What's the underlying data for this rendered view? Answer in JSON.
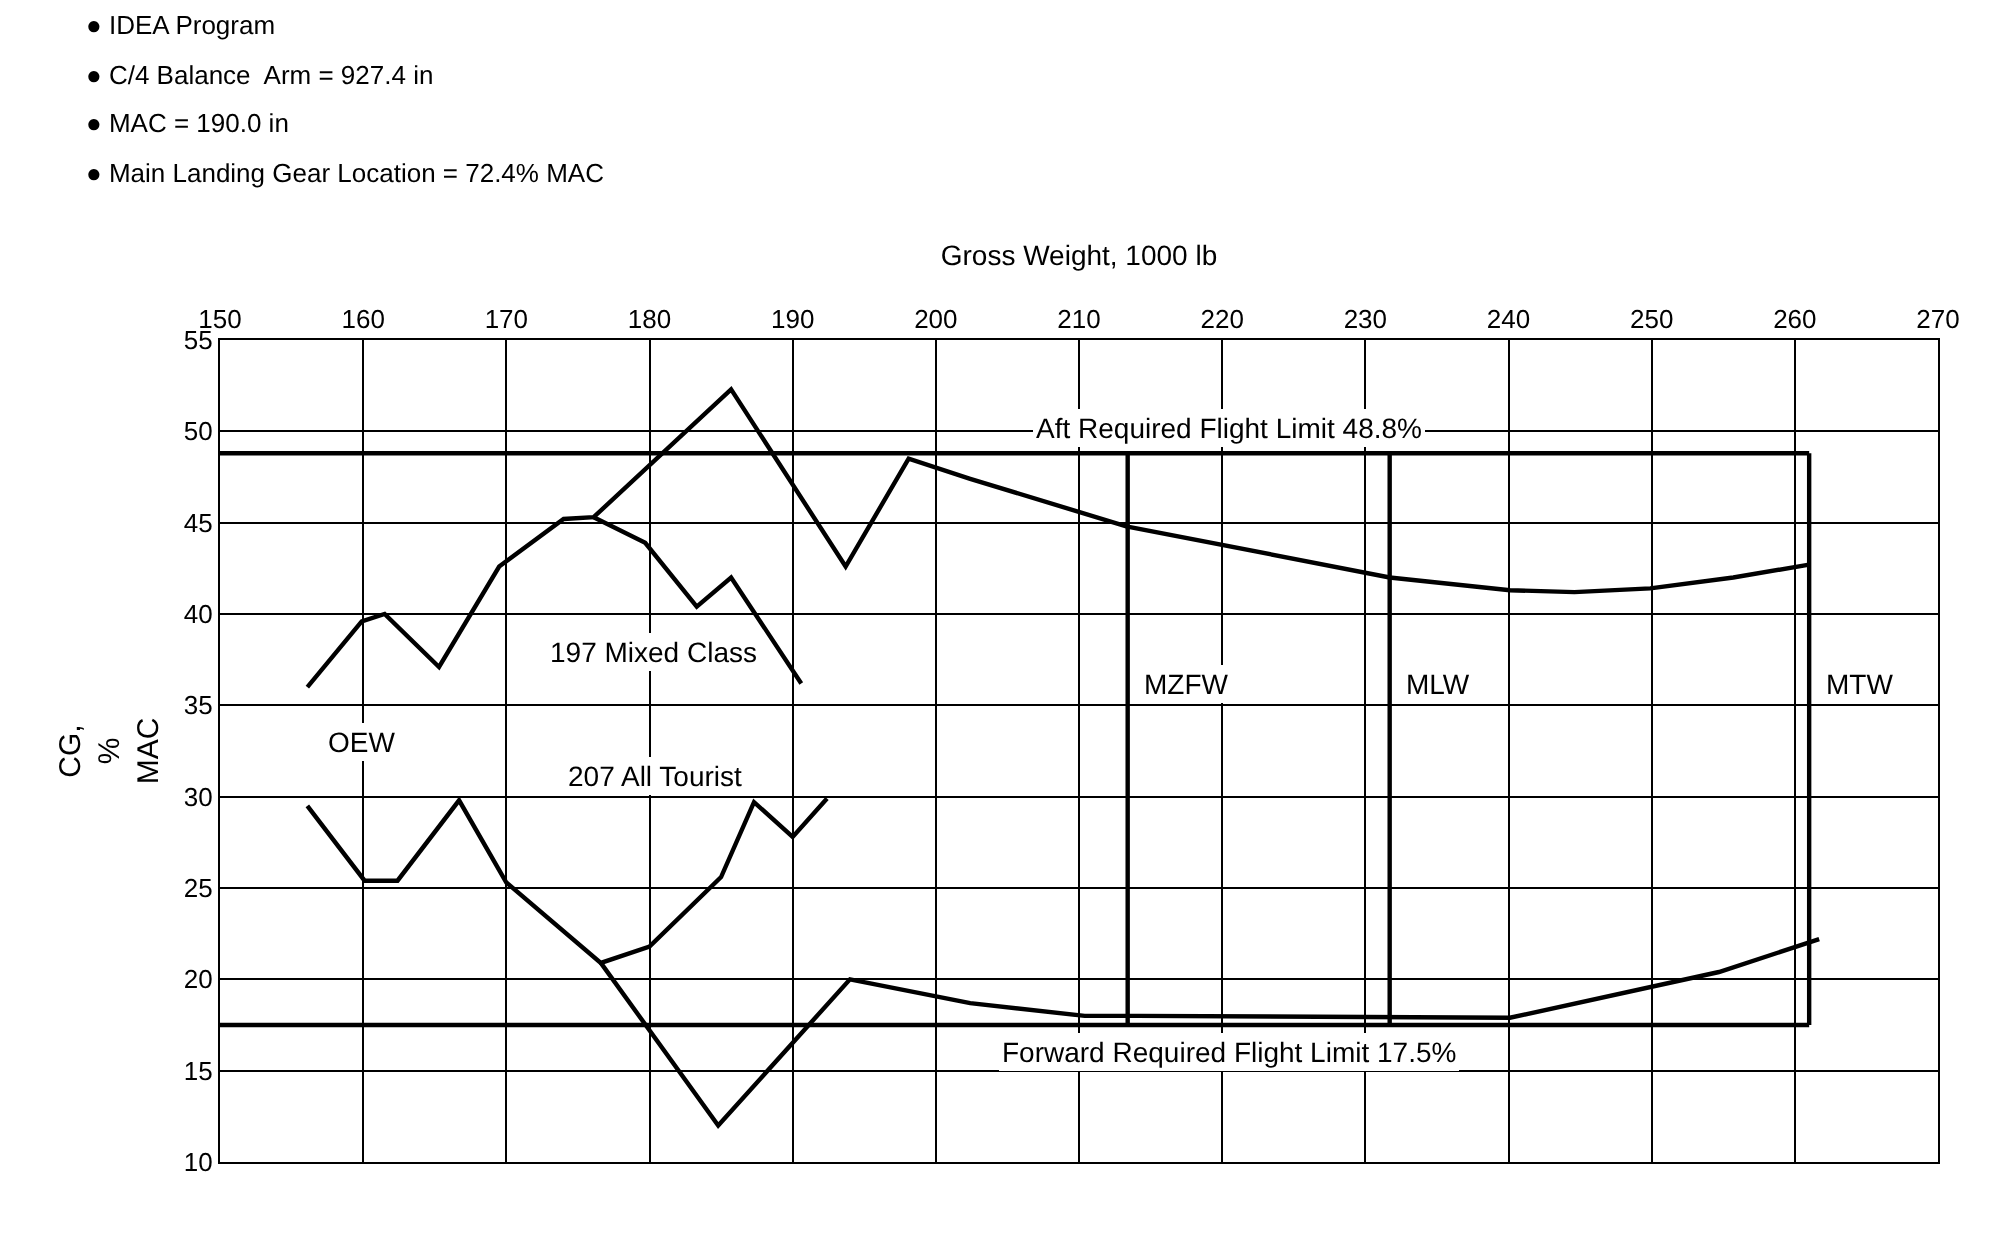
{
  "chart_data": {
    "type": "line",
    "xlabel": "Gross Weight, 1000 lb",
    "ylabel": "CG,\n%\nMAC",
    "xlim": [
      150,
      270
    ],
    "xticks": [
      150,
      160,
      170,
      180,
      190,
      200,
      210,
      220,
      230,
      240,
      250,
      260,
      270
    ],
    "ylim": [
      10,
      55
    ],
    "yticks": [
      10,
      15,
      20,
      25,
      30,
      35,
      40,
      45,
      50,
      55
    ],
    "grid": true,
    "legend": false,
    "marker": "none",
    "line_style": "solid",
    "series": [
      {
        "name": "Aft Required Flight Limit 48.8%",
        "color": "#000000",
        "x": [
          150,
          261
        ],
        "values": [
          48.8,
          48.8
        ]
      },
      {
        "name": "Forward Required Flight Limit 17.5%",
        "color": "#000000",
        "x": [
          150,
          261
        ],
        "values": [
          17.5,
          17.5
        ]
      },
      {
        "name": "MZFW",
        "color": "#000000",
        "x": [
          213.4,
          213.4
        ],
        "values": [
          17.5,
          48.8
        ]
      },
      {
        "name": "MLW",
        "color": "#000000",
        "x": [
          231.7,
          231.7
        ],
        "values": [
          17.5,
          48.8
        ]
      },
      {
        "name": "MTW",
        "color": "#000000",
        "x": [
          261,
          261
        ],
        "values": [
          17.5,
          48.8
        ]
      },
      {
        "color": "#000000",
        "x": [
          156.1,
          159.9,
          161.5,
          165.3,
          169.5,
          174.0,
          176.1,
          185.7,
          193.7,
          198.1,
          202.4,
          213.3,
          231.7,
          240.1,
          244.6,
          249.9,
          255.7,
          261.0
        ],
        "values": [
          36.0,
          39.6,
          40.0,
          37.1,
          42.6,
          45.2,
          45.3,
          52.3,
          42.6,
          48.5,
          47.4,
          44.8,
          42.0,
          41.3,
          41.2,
          41.4,
          42.0,
          42.7
        ]
      },
      {
        "color": "#000000",
        "x": [
          176.1,
          179.7,
          183.3,
          185.7,
          190.6
        ],
        "values": [
          45.3,
          43.9,
          40.4,
          42.0,
          36.2
        ]
      },
      {
        "color": "#000000",
        "x": [
          156.1,
          160.1,
          162.4,
          166.7,
          170.0,
          176.6,
          180.0,
          185.0,
          187.3,
          190.0,
          192.4
        ],
        "values": [
          29.5,
          25.4,
          25.4,
          29.8,
          25.3,
          20.9,
          21.8,
          25.6,
          29.7,
          27.8,
          29.9
        ]
      },
      {
        "color": "#000000",
        "x": [
          176.6,
          184.8,
          194.0,
          202.4,
          210.4,
          214.1,
          240.1,
          254.7,
          261.7
        ],
        "values": [
          20.9,
          12.0,
          20.0,
          18.7,
          18.0,
          18.0,
          17.9,
          20.4,
          22.2
        ]
      }
    ],
    "annotations": [
      "● IDEA Program",
      "● C/4 Balance  Arm = 927.4 in",
      "● MAC = 190.0 in",
      "● Main Landing Gear Location = 72.4% MAC",
      "OEW",
      "197 Mixed Class",
      "207 All Tourist"
    ]
  }
}
